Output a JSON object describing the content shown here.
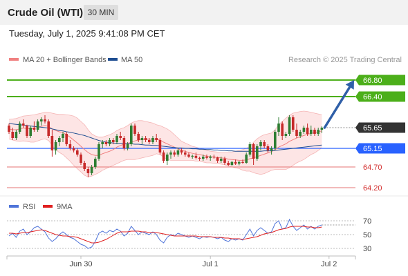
{
  "header": {
    "title": "Crude Oil (WTI)",
    "timeframe": "30 MIN"
  },
  "date_label": "Tuesday, July 1, 2025 9:41:08 PM CET",
  "legend": {
    "ma20": {
      "label": "MA 20 + Bollinger Bands",
      "color": "#f08080"
    },
    "ma50": {
      "label": "MA 50",
      "color": "#1e4d91"
    }
  },
  "credit": "Research © 2025 Trading Central",
  "colors": {
    "up": "#2e7d32",
    "down": "#c62828",
    "target_green": "#4caf1a",
    "support_blue": "#2962ff",
    "red_level": "#e57373",
    "band_fill": "#fde0e0",
    "current_price": "#333333",
    "arrow": "#2f5fa8",
    "rsi": "#4f74d9",
    "rsi_ma": "#e02020"
  },
  "chart_data": [
    {
      "type": "candlestick",
      "title": "Crude Oil (WTI)",
      "timeframe": "30 MIN",
      "ylim": [
        64.0,
        67.1
      ],
      "y_ticks_shown": [
        "66.80",
        "66.40",
        "65.65",
        "65.15",
        "64.70",
        "64.20"
      ],
      "x_labels": [
        {
          "label": "Jun 30",
          "index": 20
        },
        {
          "label": "Jul 1",
          "index": 56
        },
        {
          "label": "Jul 2",
          "index": 89
        }
      ],
      "levels": [
        {
          "value": 66.8,
          "label": "66.80",
          "kind": "target"
        },
        {
          "value": 66.4,
          "label": "66.40",
          "kind": "target"
        },
        {
          "value": 65.65,
          "label": "65.65",
          "kind": "current"
        },
        {
          "value": 65.15,
          "label": "65.15",
          "kind": "pivot"
        },
        {
          "value": 64.7,
          "label": "64.70",
          "kind": "support"
        },
        {
          "value": 64.2,
          "label": "64.20",
          "kind": "support"
        }
      ],
      "arrow": {
        "from": 65.65,
        "to": 66.8
      },
      "candles": [
        [
          65.7,
          65.75,
          65.5,
          65.55
        ],
        [
          65.55,
          65.65,
          65.35,
          65.4
        ],
        [
          65.4,
          65.6,
          65.35,
          65.55
        ],
        [
          65.55,
          65.8,
          65.5,
          65.75
        ],
        [
          65.75,
          65.85,
          65.65,
          65.7
        ],
        [
          65.7,
          65.72,
          65.4,
          65.45
        ],
        [
          65.45,
          65.7,
          65.4,
          65.65
        ],
        [
          65.65,
          65.8,
          65.55,
          65.6
        ],
        [
          65.6,
          65.85,
          65.55,
          65.8
        ],
        [
          65.8,
          65.9,
          65.7,
          65.85
        ],
        [
          65.85,
          65.95,
          65.75,
          65.8
        ],
        [
          65.8,
          65.85,
          65.4,
          65.45
        ],
        [
          65.45,
          65.6,
          64.95,
          65.1
        ],
        [
          65.1,
          65.35,
          65.0,
          65.3
        ],
        [
          65.3,
          65.45,
          65.2,
          65.4
        ],
        [
          65.4,
          65.55,
          65.3,
          65.5
        ],
        [
          65.5,
          65.55,
          65.2,
          65.25
        ],
        [
          65.25,
          65.35,
          65.1,
          65.15
        ],
        [
          65.15,
          65.2,
          65.05,
          65.1
        ],
        [
          65.1,
          65.15,
          64.95,
          65.0
        ],
        [
          65.0,
          65.05,
          64.75,
          64.8
        ],
        [
          64.8,
          64.85,
          64.6,
          64.65
        ],
        [
          64.65,
          64.7,
          64.45,
          64.55
        ],
        [
          64.55,
          64.75,
          64.5,
          64.7
        ],
        [
          64.7,
          64.95,
          64.65,
          64.9
        ],
        [
          64.9,
          65.3,
          64.85,
          65.25
        ],
        [
          65.25,
          65.35,
          65.15,
          65.3
        ],
        [
          65.3,
          65.35,
          65.2,
          65.25
        ],
        [
          65.25,
          65.4,
          65.2,
          65.35
        ],
        [
          65.35,
          65.4,
          65.25,
          65.3
        ],
        [
          65.3,
          65.5,
          65.25,
          65.45
        ],
        [
          65.45,
          65.55,
          65.35,
          65.4
        ],
        [
          65.4,
          65.45,
          65.1,
          65.15
        ],
        [
          65.15,
          65.3,
          65.1,
          65.25
        ],
        [
          65.25,
          65.75,
          65.2,
          65.7
        ],
        [
          65.7,
          65.75,
          65.45,
          65.5
        ],
        [
          65.5,
          65.55,
          65.3,
          65.35
        ],
        [
          65.35,
          65.45,
          65.25,
          65.4
        ],
        [
          65.4,
          65.45,
          65.3,
          65.35
        ],
        [
          65.35,
          65.4,
          65.25,
          65.3
        ],
        [
          65.3,
          65.45,
          65.25,
          65.4
        ],
        [
          65.4,
          65.5,
          65.3,
          65.35
        ],
        [
          65.35,
          65.4,
          65.0,
          65.05
        ],
        [
          65.05,
          65.1,
          64.8,
          64.85
        ],
        [
          64.85,
          65.05,
          64.75,
          65.0
        ],
        [
          65.0,
          65.1,
          64.9,
          65.05
        ],
        [
          65.05,
          65.1,
          64.95,
          65.0
        ],
        [
          65.0,
          65.15,
          64.95,
          65.1
        ],
        [
          65.1,
          65.15,
          65.0,
          65.05
        ],
        [
          65.05,
          65.1,
          64.95,
          65.0
        ],
        [
          65.0,
          65.05,
          64.92,
          64.95
        ],
        [
          64.95,
          65.0,
          64.9,
          64.97
        ],
        [
          64.97,
          65.05,
          64.88,
          64.92
        ],
        [
          64.92,
          64.95,
          64.85,
          64.9
        ],
        [
          64.9,
          65.0,
          64.85,
          64.95
        ],
        [
          64.95,
          65.0,
          64.88,
          64.92
        ],
        [
          64.92,
          64.98,
          64.85,
          64.95
        ],
        [
          64.95,
          65.0,
          64.9,
          64.93
        ],
        [
          64.93,
          64.95,
          64.8,
          64.85
        ],
        [
          64.85,
          64.95,
          64.8,
          64.9
        ],
        [
          64.9,
          64.95,
          64.75,
          64.8
        ],
        [
          64.8,
          64.85,
          64.72,
          64.75
        ],
        [
          64.75,
          64.85,
          64.72,
          64.82
        ],
        [
          64.82,
          64.88,
          64.75,
          64.78
        ],
        [
          64.78,
          64.85,
          64.74,
          64.82
        ],
        [
          64.82,
          64.88,
          64.78,
          64.8
        ],
        [
          64.8,
          65.05,
          64.78,
          65.0
        ],
        [
          65.0,
          65.3,
          64.95,
          65.25
        ],
        [
          65.25,
          65.28,
          64.75,
          64.9
        ],
        [
          64.9,
          65.25,
          64.85,
          65.2
        ],
        [
          65.2,
          65.35,
          65.1,
          65.3
        ],
        [
          65.3,
          65.35,
          65.15,
          65.2
        ],
        [
          65.2,
          65.25,
          65.05,
          65.1
        ],
        [
          65.1,
          65.2,
          65.0,
          65.15
        ],
        [
          65.15,
          65.6,
          65.1,
          65.55
        ],
        [
          65.55,
          65.9,
          65.45,
          65.75
        ],
        [
          65.75,
          65.8,
          65.35,
          65.45
        ],
        [
          65.45,
          65.55,
          65.4,
          65.5
        ],
        [
          65.5,
          65.95,
          65.45,
          65.9
        ],
        [
          65.9,
          65.95,
          65.55,
          65.6
        ],
        [
          65.6,
          65.75,
          65.4,
          65.45
        ],
        [
          65.45,
          65.6,
          65.4,
          65.55
        ],
        [
          65.55,
          65.7,
          65.5,
          65.65
        ],
        [
          65.65,
          65.75,
          65.45,
          65.5
        ],
        [
          65.5,
          65.7,
          65.45,
          65.6
        ],
        [
          65.6,
          65.65,
          65.45,
          65.5
        ],
        [
          65.5,
          65.65,
          65.45,
          65.6
        ],
        [
          65.6,
          65.68,
          65.52,
          65.65
        ]
      ],
      "ma20": [
        65.62,
        65.6,
        65.6,
        65.62,
        65.64,
        65.63,
        65.62,
        65.63,
        65.66,
        65.68,
        65.7,
        65.68,
        65.62,
        65.58,
        65.55,
        65.53,
        65.48,
        65.42,
        65.35,
        65.28,
        65.2,
        65.12,
        65.05,
        65.0,
        64.98,
        64.98,
        65.02,
        65.05,
        65.08,
        65.12,
        65.18,
        65.22,
        65.25,
        65.27,
        65.3,
        65.33,
        65.35,
        65.36,
        65.37,
        65.37,
        65.37,
        65.37,
        65.35,
        65.3,
        65.26,
        65.22,
        65.18,
        65.14,
        65.1,
        65.08,
        65.05,
        65.03,
        65.01,
        65.0,
        64.98,
        64.96,
        64.95,
        64.94,
        64.93,
        64.92,
        64.91,
        64.89,
        64.88,
        64.87,
        64.86,
        64.86,
        64.87,
        64.9,
        64.92,
        64.95,
        64.98,
        65.01,
        65.04,
        65.07,
        65.12,
        65.18,
        65.22,
        65.26,
        65.32,
        65.36,
        65.4,
        65.43,
        65.46,
        65.49,
        65.51,
        65.53,
        65.55,
        65.57
      ],
      "bb_upper": [
        65.85,
        65.86,
        65.87,
        65.9,
        65.93,
        65.94,
        65.95,
        65.96,
        65.98,
        66.0,
        66.02,
        66.02,
        66.0,
        65.98,
        65.97,
        65.97,
        65.96,
        65.95,
        65.93,
        65.88,
        65.8,
        65.72,
        65.6,
        65.5,
        65.45,
        65.42,
        65.42,
        65.45,
        65.48,
        65.52,
        65.58,
        65.62,
        65.65,
        65.7,
        65.76,
        65.8,
        65.82,
        65.82,
        65.8,
        65.78,
        65.76,
        65.72,
        65.7,
        65.66,
        65.62,
        65.56,
        65.48,
        65.4,
        65.32,
        65.28,
        65.24,
        65.2,
        65.18,
        65.15,
        65.12,
        65.1,
        65.08,
        65.07,
        65.06,
        65.05,
        65.05,
        65.05,
        65.06,
        65.08,
        65.1,
        65.12,
        65.15,
        65.2,
        65.3,
        65.38,
        65.44,
        65.48,
        65.5,
        65.52,
        65.6,
        65.72,
        65.8,
        65.88,
        65.95,
        66.0,
        66.02,
        66.04,
        66.05,
        66.04,
        66.02,
        66.0,
        65.98,
        65.96
      ],
      "bb_lower": [
        65.38,
        65.35,
        65.33,
        65.32,
        65.33,
        65.32,
        65.3,
        65.3,
        65.33,
        65.36,
        65.38,
        65.34,
        65.22,
        65.12,
        65.05,
        65.0,
        64.92,
        64.84,
        64.74,
        64.66,
        64.58,
        64.5,
        64.46,
        64.48,
        64.52,
        64.56,
        64.62,
        64.66,
        64.7,
        64.74,
        64.78,
        64.82,
        64.86,
        64.88,
        64.88,
        64.88,
        64.9,
        64.92,
        64.94,
        64.96,
        64.98,
        65.02,
        65.0,
        64.94,
        64.88,
        64.86,
        64.86,
        64.86,
        64.86,
        64.86,
        64.86,
        64.86,
        64.84,
        64.84,
        64.82,
        64.8,
        64.8,
        64.79,
        64.78,
        64.77,
        64.75,
        64.73,
        64.7,
        64.68,
        64.66,
        64.62,
        64.6,
        64.6,
        64.56,
        64.54,
        64.52,
        64.54,
        64.58,
        64.62,
        64.64,
        64.64,
        64.64,
        64.64,
        64.68,
        64.74,
        64.8,
        64.84,
        64.88,
        64.94,
        65.0,
        65.04,
        65.1,
        65.16
      ],
      "ma50": [
        65.75,
        65.74,
        65.73,
        65.72,
        65.71,
        65.7,
        65.69,
        65.68,
        65.67,
        65.66,
        65.65,
        65.64,
        65.62,
        65.6,
        65.58,
        65.57,
        65.55,
        65.54,
        65.52,
        65.5,
        65.48,
        65.46,
        65.43,
        65.4,
        65.37,
        65.34,
        65.32,
        65.3,
        65.29,
        65.28,
        65.27,
        65.27,
        65.26,
        65.26,
        65.26,
        65.25,
        65.25,
        65.24,
        65.23,
        65.23,
        65.22,
        65.22,
        65.21,
        65.2,
        65.19,
        65.18,
        65.17,
        65.16,
        65.16,
        65.15,
        65.15,
        65.14,
        65.14,
        65.13,
        65.13,
        65.12,
        65.12,
        65.11,
        65.11,
        65.1,
        65.1,
        65.09,
        65.09,
        65.08,
        65.08,
        65.08,
        65.08,
        65.08,
        65.08,
        65.08,
        65.08,
        65.09,
        65.09,
        65.09,
        65.1,
        65.11,
        65.12,
        65.13,
        65.14,
        65.15,
        65.16,
        65.17,
        65.18,
        65.19,
        65.2,
        65.21,
        65.22,
        65.23
      ]
    },
    {
      "type": "line",
      "title": "RSI",
      "ylim": [
        20,
        80
      ],
      "y_ticks": [
        70,
        50,
        30
      ],
      "series": [
        {
          "name": "RSI",
          "color": "#4f74d9",
          "values": [
            48,
            52,
            46,
            55,
            58,
            50,
            54,
            60,
            62,
            58,
            54,
            45,
            40,
            44,
            50,
            54,
            50,
            46,
            44,
            40,
            36,
            34,
            30,
            32,
            40,
            52,
            55,
            52,
            56,
            54,
            58,
            55,
            48,
            52,
            62,
            56,
            50,
            54,
            52,
            50,
            54,
            50,
            42,
            38,
            46,
            50,
            48,
            52,
            50,
            48,
            46,
            48,
            46,
            44,
            47,
            46,
            47,
            46,
            44,
            46,
            42,
            40,
            44,
            42,
            44,
            42,
            50,
            58,
            48,
            56,
            60,
            56,
            52,
            54,
            66,
            70,
            58,
            60,
            72,
            62,
            56,
            60,
            64,
            58,
            62,
            58,
            62,
            64
          ]
        },
        {
          "name": "9MA",
          "color": "#e02020",
          "values": [
            52,
            52,
            51,
            52,
            53,
            53,
            54,
            55,
            56,
            57,
            56,
            54,
            52,
            50,
            49,
            48,
            48,
            47,
            47,
            46,
            44,
            42,
            40,
            38,
            38,
            39,
            41,
            43,
            46,
            49,
            52,
            54,
            54,
            54,
            55,
            55,
            55,
            54,
            54,
            53,
            53,
            53,
            52,
            51,
            50,
            49,
            48,
            48,
            48,
            48,
            48,
            48,
            48,
            47,
            47,
            47,
            47,
            46,
            46,
            46,
            45,
            45,
            44,
            44,
            44,
            43,
            44,
            45,
            46,
            47,
            49,
            51,
            52,
            53,
            55,
            57,
            58,
            59,
            61,
            62,
            62,
            62,
            62,
            61,
            61,
            60,
            60,
            61
          ]
        }
      ]
    }
  ]
}
